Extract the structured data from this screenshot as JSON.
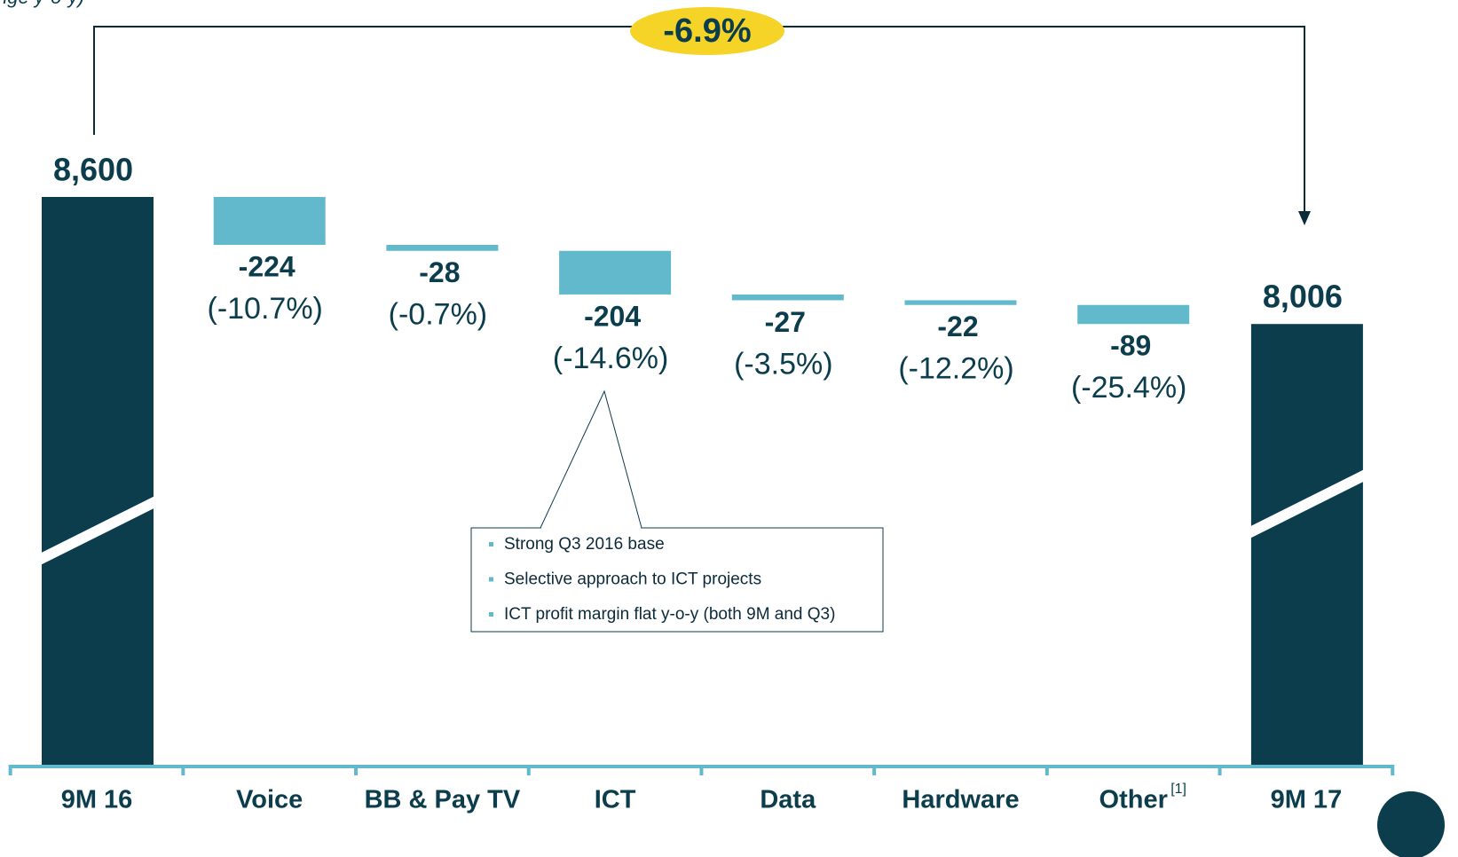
{
  "chart_data": {
    "type": "waterfall",
    "subtitle": "nge y-o-y)",
    "categories": [
      "9M 16",
      "Voice",
      "BB & Pay TV",
      "ICT",
      "Data",
      "Hardware",
      "Other",
      "9M 17"
    ],
    "category_superscripts": [
      null,
      null,
      null,
      null,
      null,
      null,
      "[1]",
      null
    ],
    "values": [
      8600,
      -224,
      -28,
      -204,
      -27,
      -22,
      -89,
      8006
    ],
    "value_labels": [
      "8,600",
      "-224",
      "-28",
      "-204",
      "-27",
      "-22",
      "-89",
      "8,006"
    ],
    "change_labels": [
      null,
      "(-10.7%)",
      "(-0.7%)",
      "(-14.6%)",
      "(-3.5%)",
      "(-12.2%)",
      "(-25.4%)",
      null
    ],
    "kinds": [
      "total",
      "delta",
      "delta",
      "delta",
      "delta",
      "delta",
      "delta",
      "total"
    ],
    "total_color": "#0b3d4d",
    "delta_color": "#62b9cc",
    "overall_change": -6.9,
    "overall_change_label": "-6.9%",
    "callout": {
      "category": 3,
      "items": [
        "Strong Q3 2016 base",
        "Selective approach to ICT projects",
        "ICT profit margin flat y-o-y (both 9M and Q3)"
      ]
    }
  }
}
